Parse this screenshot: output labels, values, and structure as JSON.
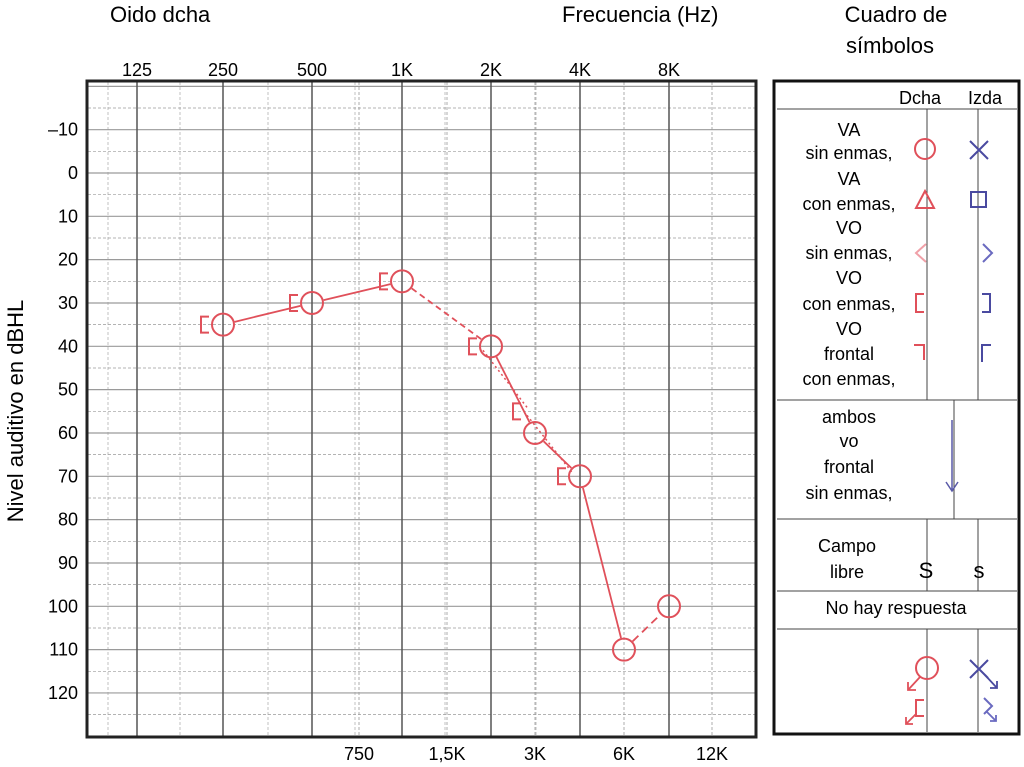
{
  "chart_data": {
    "type": "scatter",
    "title_left": "Oido dcha",
    "title_right": "Frecuencia (Hz)",
    "ylabel": "Nivel auditivo en dBHL",
    "x_top_ticks": [
      "125",
      "250",
      "500",
      "1K",
      "2K",
      "4K",
      "8K"
    ],
    "x_bottom_ticks": [
      "750",
      "1,5K",
      "3K",
      "6K",
      "12K"
    ],
    "y_ticks": [
      "–10",
      "0",
      "10",
      "20",
      "30",
      "40",
      "50",
      "60",
      "70",
      "80",
      "90",
      "100",
      "110",
      "120"
    ],
    "ylim": [
      -20,
      130
    ],
    "series": [
      {
        "symbol": "O",
        "x": [
          "250",
          "500",
          "1K",
          "2K",
          "3K",
          "4K",
          "6K",
          "8K"
        ],
        "y": [
          35,
          30,
          25,
          40,
          60,
          70,
          110,
          100
        ]
      },
      {
        "symbol": "[",
        "x": [
          "250",
          "500",
          "1K",
          "2K",
          "3K",
          "4K"
        ],
        "y": [
          35,
          30,
          25,
          40,
          55,
          70
        ]
      }
    ],
    "colors": {
      "right": "#e0505a",
      "left": "#4a4aa0",
      "grid": "#9a9a9a",
      "frame": "#222222"
    }
  },
  "legend": {
    "title": [
      "Cuadro de",
      "símbolos"
    ],
    "col_dcha": "Dcha",
    "col_izda": "Izda",
    "rows": [
      [
        "VA",
        "sin enmas,"
      ],
      [
        "VA",
        "con enmas,"
      ],
      [
        "VO",
        "sin enmas,"
      ],
      [
        "VO",
        "con enmas,"
      ],
      [
        "VO",
        "frontal",
        "con enmas,"
      ]
    ],
    "ambos": [
      "ambos",
      "vo",
      "frontal",
      "sin enmas,"
    ],
    "campo": [
      "Campo",
      "libre"
    ],
    "campo_dcha": "S",
    "campo_izda": "s",
    "no_respuesta": "No hay respuesta"
  }
}
